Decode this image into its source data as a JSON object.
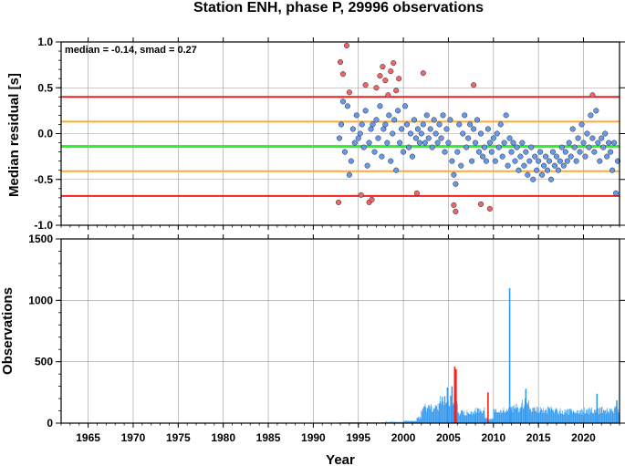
{
  "chart_data": {
    "title": "Station ENH, phase P, 29996 observations",
    "xlabel": "Year",
    "xlim": [
      1962.0,
      2024.0
    ],
    "xticks": [
      "1965",
      "1970",
      "1975",
      "1980",
      "1985",
      "1990",
      "1995",
      "2000",
      "2005",
      "2010",
      "2015",
      "2020"
    ],
    "panels": [
      {
        "type": "scatter",
        "ylabel": "Median residual [s]",
        "ylim": [
          -1.0,
          1.0
        ],
        "yticks": [
          "-1.0",
          "-0.5",
          "0.0",
          "0.5",
          "1.0"
        ],
        "annotation": "median = -0.14, smad = 0.27",
        "grid": true,
        "reference_lines": [
          {
            "value": -0.14,
            "color": "#33ee33"
          },
          {
            "value": 0.13,
            "color": "#ffaa33"
          },
          {
            "value": -0.41,
            "color": "#ffaa33"
          },
          {
            "value": 0.4,
            "color": "#ee2222"
          },
          {
            "value": -0.68,
            "color": "#ee2222"
          }
        ],
        "series": [
          {
            "color": "#6699ee",
            "points": [
              [
                1992.9,
                -0.05
              ],
              [
                1993.1,
                0.1
              ],
              [
                1993.3,
                0.35
              ],
              [
                1993.5,
                -0.2
              ],
              [
                1993.8,
                0.3
              ],
              [
                1994.0,
                -0.45
              ],
              [
                1994.2,
                -0.3
              ],
              [
                1994.4,
                0.05
              ],
              [
                1994.6,
                -0.1
              ],
              [
                1994.8,
                0.2
              ],
              [
                1995.0,
                -0.05
              ],
              [
                1995.2,
                0.0
              ],
              [
                1995.4,
                0.1
              ],
              [
                1995.6,
                -0.15
              ],
              [
                1995.8,
                0.25
              ],
              [
                1996.0,
                -0.35
              ],
              [
                1996.2,
                -0.1
              ],
              [
                1996.4,
                0.05
              ],
              [
                1996.6,
                0.1
              ],
              [
                1996.8,
                -0.2
              ],
              [
                1997.0,
                0.15
              ],
              [
                1997.2,
                -0.05
              ],
              [
                1997.4,
                0.3
              ],
              [
                1997.6,
                -0.25
              ],
              [
                1997.8,
                0.05
              ],
              [
                1998.0,
                0.1
              ],
              [
                1998.2,
                -0.1
              ],
              [
                1998.4,
                0.2
              ],
              [
                1998.6,
                -0.3
              ],
              [
                1998.8,
                0.0
              ],
              [
                1999.0,
                0.15
              ],
              [
                1999.2,
                -0.4
              ],
              [
                1999.4,
                0.25
              ],
              [
                1999.6,
                -0.1
              ],
              [
                1999.8,
                0.05
              ],
              [
                2000.0,
                -0.2
              ],
              [
                2000.2,
                0.3
              ],
              [
                2000.4,
                0.1
              ],
              [
                2000.6,
                -0.15
              ],
              [
                2000.8,
                0.0
              ],
              [
                2001.0,
                -0.25
              ],
              [
                2001.2,
                0.15
              ],
              [
                2001.4,
                -0.05
              ],
              [
                2001.6,
                0.05
              ],
              [
                2001.8,
                -0.1
              ],
              [
                2002.0,
                0.0
              ],
              [
                2002.2,
                0.1
              ],
              [
                2002.4,
                -0.1
              ],
              [
                2002.6,
                0.2
              ],
              [
                2002.8,
                -0.05
              ],
              [
                2003.0,
                0.05
              ],
              [
                2003.2,
                -0.15
              ],
              [
                2003.4,
                0.15
              ],
              [
                2003.6,
                0.0
              ],
              [
                2003.8,
                -0.1
              ],
              [
                2004.0,
                0.1
              ],
              [
                2004.2,
                -0.05
              ],
              [
                2004.4,
                0.2
              ],
              [
                2004.6,
                -0.2
              ],
              [
                2004.8,
                0.05
              ],
              [
                2005.0,
                -0.1
              ],
              [
                2005.2,
                0.15
              ],
              [
                2005.4,
                -0.3
              ],
              [
                2005.6,
                -0.45
              ],
              [
                2005.8,
                -0.55
              ],
              [
                2006.0,
                -0.2
              ],
              [
                2006.2,
                0.1
              ],
              [
                2006.4,
                -0.35
              ],
              [
                2006.6,
                0.0
              ],
              [
                2006.8,
                0.2
              ],
              [
                2007.0,
                -0.15
              ],
              [
                2007.2,
                -0.05
              ],
              [
                2007.4,
                0.1
              ],
              [
                2007.6,
                -0.3
              ],
              [
                2007.8,
                0.05
              ],
              [
                2008.0,
                -0.1
              ],
              [
                2008.2,
                0.15
              ],
              [
                2008.4,
                -0.2
              ],
              [
                2008.6,
                0.0
              ],
              [
                2008.8,
                -0.25
              ],
              [
                2009.0,
                -0.15
              ],
              [
                2009.2,
                -0.3
              ],
              [
                2009.4,
                0.05
              ],
              [
                2009.6,
                -0.1
              ],
              [
                2009.8,
                -0.2
              ],
              [
                2010.0,
                -0.05
              ],
              [
                2010.2,
                -0.3
              ],
              [
                2010.4,
                0.0
              ],
              [
                2010.6,
                -0.15
              ],
              [
                2010.8,
                0.1
              ],
              [
                2011.0,
                -0.25
              ],
              [
                2011.2,
                -0.1
              ],
              [
                2011.4,
                0.2
              ],
              [
                2011.6,
                -0.35
              ],
              [
                2011.8,
                -0.05
              ],
              [
                2012.0,
                -0.2
              ],
              [
                2012.2,
                -0.1
              ],
              [
                2012.4,
                -0.3
              ],
              [
                2012.6,
                -0.15
              ],
              [
                2012.8,
                -0.4
              ],
              [
                2013.0,
                -0.25
              ],
              [
                2013.2,
                -0.1
              ],
              [
                2013.4,
                -0.35
              ],
              [
                2013.6,
                -0.2
              ],
              [
                2013.8,
                -0.45
              ],
              [
                2014.0,
                -0.3
              ],
              [
                2014.2,
                -0.15
              ],
              [
                2014.4,
                -0.5
              ],
              [
                2014.6,
                -0.25
              ],
              [
                2014.8,
                -0.4
              ],
              [
                2015.0,
                -0.3
              ],
              [
                2015.2,
                -0.2
              ],
              [
                2015.4,
                -0.45
              ],
              [
                2015.6,
                -0.35
              ],
              [
                2015.8,
                -0.25
              ],
              [
                2016.0,
                -0.4
              ],
              [
                2016.2,
                -0.3
              ],
              [
                2016.4,
                -0.5
              ],
              [
                2016.6,
                -0.2
              ],
              [
                2016.8,
                -0.35
              ],
              [
                2017.0,
                -0.25
              ],
              [
                2017.2,
                -0.4
              ],
              [
                2017.4,
                -0.3
              ],
              [
                2017.6,
                -0.15
              ],
              [
                2017.8,
                -0.35
              ],
              [
                2018.0,
                -0.2
              ],
              [
                2018.2,
                -0.3
              ],
              [
                2018.4,
                -0.1
              ],
              [
                2018.6,
                -0.25
              ],
              [
                2018.8,
                0.05
              ],
              [
                2019.0,
                -0.15
              ],
              [
                2019.2,
                -0.3
              ],
              [
                2019.4,
                -0.05
              ],
              [
                2019.6,
                -0.2
              ],
              [
                2019.8,
                0.1
              ],
              [
                2020.0,
                -0.1
              ],
              [
                2020.2,
                -0.25
              ],
              [
                2020.4,
                0.0
              ],
              [
                2020.6,
                -0.15
              ],
              [
                2020.8,
                0.2
              ],
              [
                2021.0,
                -0.05
              ],
              [
                2021.2,
                -0.2
              ],
              [
                2021.4,
                0.25
              ],
              [
                2021.6,
                -0.1
              ],
              [
                2021.8,
                -0.3
              ],
              [
                2022.0,
                -0.05
              ],
              [
                2022.2,
                -0.15
              ],
              [
                2022.4,
                0.0
              ],
              [
                2022.6,
                -0.25
              ],
              [
                2022.8,
                -0.1
              ],
              [
                2023.0,
                -0.2
              ],
              [
                2023.2,
                -0.4
              ],
              [
                2023.4,
                -0.1
              ],
              [
                2023.6,
                -0.65
              ],
              [
                2023.8,
                -0.3
              ]
            ]
          },
          {
            "color": "#ee6666",
            "points": [
              [
                1992.8,
                -0.75
              ],
              [
                1993.0,
                0.78
              ],
              [
                1993.3,
                0.65
              ],
              [
                1993.7,
                0.96
              ],
              [
                1994.0,
                0.45
              ],
              [
                1995.3,
                -0.67
              ],
              [
                1995.8,
                0.53
              ],
              [
                1996.2,
                -0.75
              ],
              [
                1996.5,
                -0.72
              ],
              [
                1997.0,
                0.5
              ],
              [
                1997.4,
                0.63
              ],
              [
                1997.7,
                0.73
              ],
              [
                1998.0,
                0.58
              ],
              [
                1998.3,
                0.42
              ],
              [
                1998.6,
                0.68
              ],
              [
                1998.9,
                0.77
              ],
              [
                1999.2,
                0.47
              ],
              [
                1999.5,
                0.6
              ],
              [
                2001.5,
                -0.65
              ],
              [
                2002.2,
                0.66
              ],
              [
                2005.6,
                -0.78
              ],
              [
                2005.8,
                -0.85
              ],
              [
                2007.8,
                0.53
              ],
              [
                2008.6,
                -0.77
              ],
              [
                2009.6,
                -0.82
              ],
              [
                2021.0,
                0.42
              ]
            ]
          }
        ]
      },
      {
        "type": "bar",
        "ylabel": "Observations",
        "ylim": [
          0,
          1500
        ],
        "yticks": [
          "0",
          "500",
          "1000",
          "1500"
        ],
        "grid": true,
        "series": [
          {
            "color": "#3399ee",
            "segments": [
              [
                1993.0,
                1998.0,
                8
              ],
              [
                1998.0,
                2000.0,
                12
              ],
              [
                2000.0,
                2001.5,
                25
              ],
              [
                2001.5,
                2002.0,
                60
              ],
              [
                2002.0,
                2004.0,
                160
              ],
              [
                2004.0,
                2005.5,
                230
              ],
              [
                2005.5,
                2006.0,
                200
              ],
              [
                2006.0,
                2008.0,
                110
              ],
              [
                2008.0,
                2009.0,
                140
              ],
              [
                2009.0,
                2010.0,
                50
              ],
              [
                2010.0,
                2012.0,
                130
              ],
              [
                2012.0,
                2013.0,
                160
              ],
              [
                2013.0,
                2014.0,
                200
              ],
              [
                2014.0,
                2017.0,
                140
              ],
              [
                2017.0,
                2020.0,
                120
              ],
              [
                2020.0,
                2022.0,
                130
              ],
              [
                2022.0,
                2024.0,
                140
              ]
            ],
            "spikes": [
              [
                2011.8,
                1100
              ],
              [
                2005.4,
                300
              ],
              [
                2004.9,
                290
              ],
              [
                2013.6,
                280
              ],
              [
                2021.5,
                240
              ],
              [
                2023.7,
                185
              ]
            ]
          },
          {
            "color": "#ee2222",
            "segments": [
              [
                1993.0,
                2001.5,
                5
              ]
            ],
            "spikes": [
              [
                2005.7,
                460
              ],
              [
                2005.85,
                440
              ],
              [
                2009.4,
                250
              ]
            ]
          }
        ]
      }
    ]
  }
}
